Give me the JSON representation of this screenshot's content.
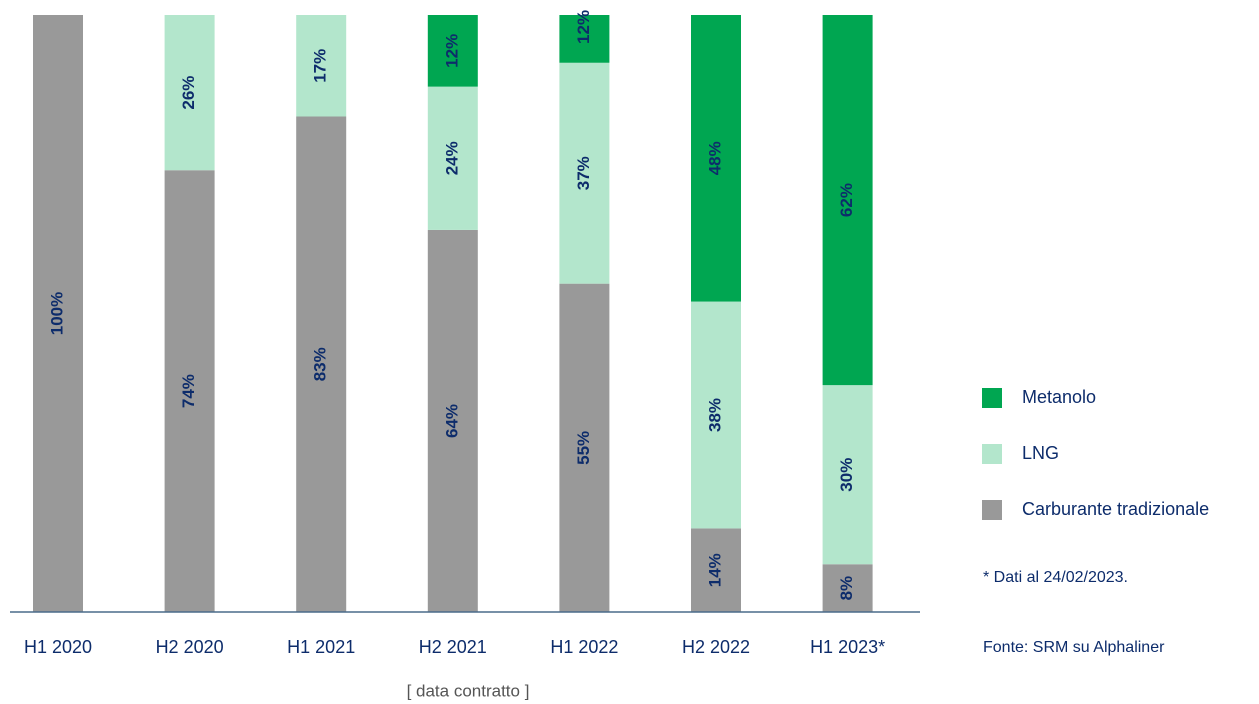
{
  "chart_data": {
    "type": "bar",
    "stacked": true,
    "categories": [
      "H1 2020",
      "H2 2020",
      "H1 2021",
      "H2 2021",
      "H1 2022",
      "H2 2022",
      "H1 2023*"
    ],
    "x_label": "[ data contratto ]",
    "series": [
      {
        "name": "Carburante tradizionale",
        "color": "#999999",
        "values": [
          100,
          74,
          83,
          64,
          55,
          14,
          8
        ],
        "value_labels": [
          "100%",
          "74%",
          "83%",
          "64%",
          "55%",
          "14%",
          "8%"
        ]
      },
      {
        "name": "LNG",
        "color": "#b3e6cc",
        "values": [
          0,
          26,
          17,
          24,
          37,
          38,
          30
        ],
        "value_labels": [
          null,
          "26%",
          "17%",
          "24%",
          "37%",
          "38%",
          "30%"
        ]
      },
      {
        "name": "Metanolo",
        "color": "#00a651",
        "values": [
          0,
          0,
          0,
          12,
          12,
          48,
          62
        ],
        "value_labels": [
          null,
          null,
          null,
          "12%",
          "12%",
          "48%",
          "62%"
        ]
      }
    ],
    "ylim": [
      0,
      100
    ],
    "note": "* Dati al 24/02/2023.",
    "source": "Fonte: SRM su Alphaliner"
  }
}
